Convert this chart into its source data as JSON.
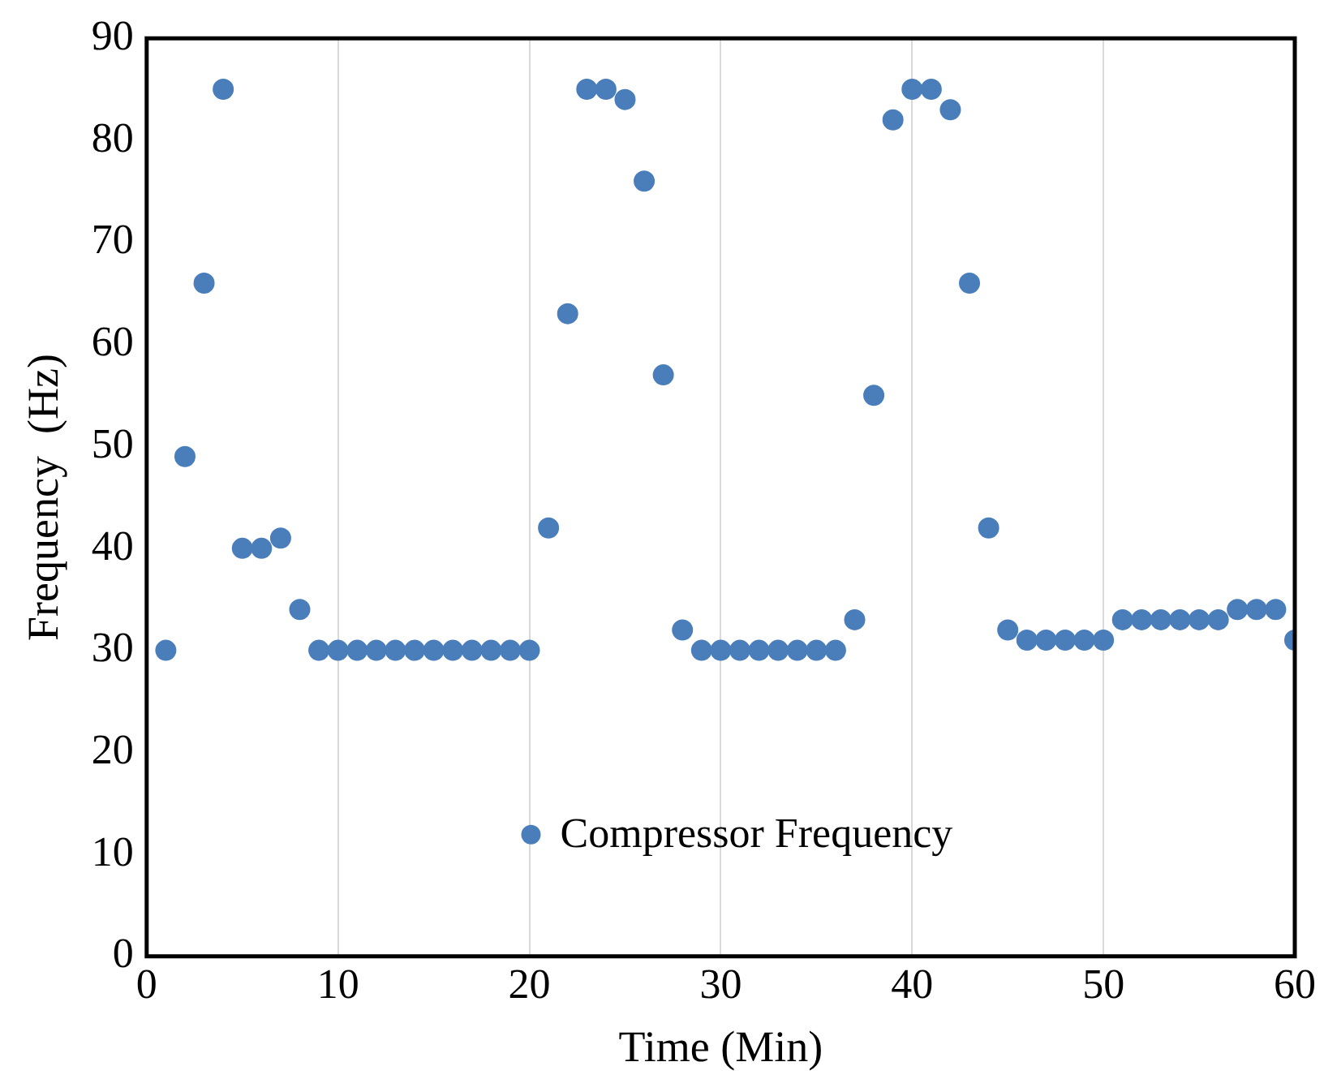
{
  "chart_data": {
    "type": "scatter",
    "xlabel": "Time (Min)",
    "ylabel": "Frequency  (Hz)",
    "x": [
      1,
      2,
      3,
      4,
      5,
      6,
      7,
      8,
      9,
      10,
      11,
      12,
      13,
      14,
      15,
      16,
      17,
      18,
      19,
      20,
      21,
      22,
      23,
      24,
      25,
      26,
      27,
      28,
      29,
      30,
      31,
      32,
      33,
      34,
      35,
      36,
      37,
      38,
      39,
      40,
      41,
      42,
      43,
      44,
      45,
      46,
      47,
      48,
      49,
      50,
      51,
      52,
      53,
      54,
      55,
      56,
      57,
      58,
      59,
      60
    ],
    "series": [
      {
        "name": "Compressor Frequency",
        "color": "#4a7ebb",
        "values": [
          30,
          49,
          66,
          85,
          40,
          40,
          41,
          34,
          30,
          30,
          30,
          30,
          30,
          30,
          30,
          30,
          30,
          30,
          30,
          30,
          42,
          63,
          85,
          85,
          84,
          76,
          57,
          32,
          30,
          30,
          30,
          30,
          30,
          30,
          30,
          30,
          33,
          55,
          82,
          85,
          85,
          83,
          66,
          42,
          32,
          31,
          31,
          31,
          31,
          31,
          33,
          33,
          33,
          33,
          33,
          33,
          34,
          34,
          34,
          31
        ]
      }
    ],
    "xlim": [
      0,
      60
    ],
    "xticks": [
      0,
      10,
      20,
      30,
      40,
      50,
      60
    ],
    "ylim": [
      0,
      90
    ],
    "yticks": [
      0,
      10,
      20,
      30,
      40,
      50,
      60,
      70,
      80,
      90
    ],
    "grid": "x",
    "legend": "bottom",
    "marker": "circle"
  }
}
